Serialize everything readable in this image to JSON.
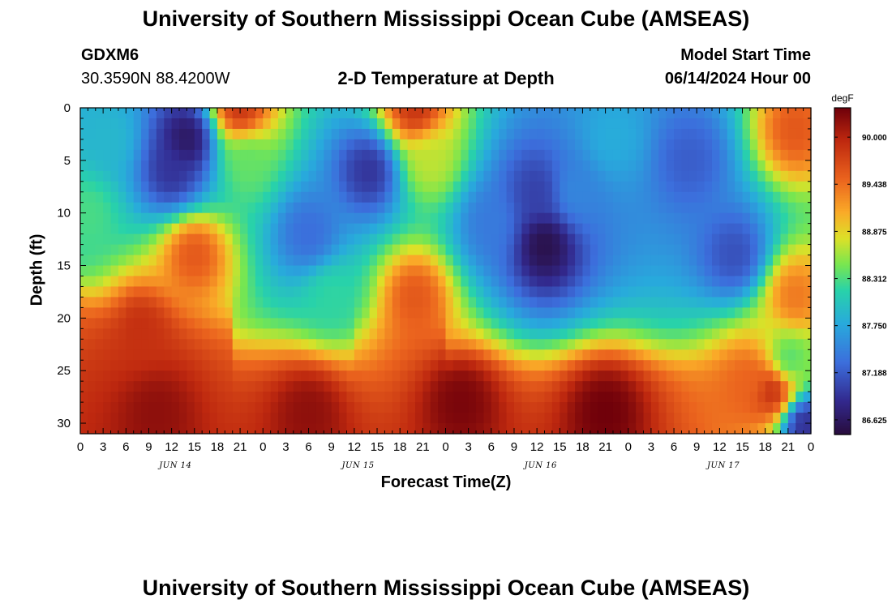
{
  "header": {
    "title": "University of Southern Mississippi Ocean Cube (AMSEAS)",
    "station_id": "GDXM6",
    "coordinates": "30.3590N  88.4200W",
    "subtitle": "2-D Temperature at Depth",
    "model_start_label": "Model Start Time",
    "model_start_value": "06/14/2024 Hour 00"
  },
  "footer": {
    "title": "University of Southern Mississippi Ocean Cube (AMSEAS)"
  },
  "chart_data": {
    "type": "heatmap",
    "title": "2-D Temperature at Depth",
    "xlabel": "Forecast Time(Z)",
    "ylabel": "Depth (ft)",
    "x_hours_range": [
      0,
      96
    ],
    "ylim": [
      0,
      31
    ],
    "x_tick_labels": [
      "0",
      "3",
      "6",
      "9",
      "12",
      "15",
      "18",
      "21",
      "0",
      "3",
      "6",
      "9",
      "12",
      "15",
      "18",
      "21",
      "0",
      "3",
      "6",
      "9",
      "12",
      "15",
      "18",
      "21",
      "0",
      "3",
      "6",
      "9",
      "12",
      "15",
      "18",
      "21",
      "0"
    ],
    "y_ticks": [
      0,
      5,
      10,
      15,
      20,
      25,
      30
    ],
    "date_labels": [
      {
        "label": "JUN 14",
        "hour": 12.5
      },
      {
        "label": "JUN 15",
        "hour": 36.5
      },
      {
        "label": "JUN 16",
        "hour": 60.5
      },
      {
        "label": "JUN 17",
        "hour": 84.5
      }
    ],
    "colorbar": {
      "unit": "degF",
      "min": 86.45,
      "max": 90.35,
      "tick_values": [
        90.0,
        89.438,
        88.875,
        88.312,
        87.75,
        87.188,
        86.625
      ],
      "tick_labels": [
        "90.000",
        "89.438",
        "88.875",
        "88.312",
        "87.750",
        "87.188",
        "86.625"
      ]
    },
    "features": [
      {
        "hour": 1,
        "depth": 10,
        "value": 88.3
      },
      {
        "hour": 4,
        "depth": 3,
        "value": 87.9
      },
      {
        "hour": 14,
        "depth": 3,
        "value": 86.6
      },
      {
        "hour": 12,
        "depth": 6,
        "value": 86.9
      },
      {
        "hour": 21,
        "depth": 0,
        "value": 89.9
      },
      {
        "hour": 22,
        "depth": 5,
        "value": 88.4
      },
      {
        "hour": 15,
        "depth": 14,
        "value": 89.6
      },
      {
        "hour": 8,
        "depth": 21,
        "value": 89.9
      },
      {
        "hour": 30,
        "depth": 12,
        "value": 87.3
      },
      {
        "hour": 38,
        "depth": 6,
        "value": 86.9
      },
      {
        "hour": 33,
        "depth": 18,
        "value": 88.2
      },
      {
        "hour": 44,
        "depth": 0,
        "value": 89.9
      },
      {
        "hour": 46,
        "depth": 5,
        "value": 88.7
      },
      {
        "hour": 44,
        "depth": 18,
        "value": 89.6
      },
      {
        "hour": 54,
        "depth": 11,
        "value": 87.4
      },
      {
        "hour": 61,
        "depth": 13,
        "value": 86.5
      },
      {
        "hour": 60,
        "depth": 8,
        "value": 87.0
      },
      {
        "hour": 65,
        "depth": 8,
        "value": 87.5
      },
      {
        "hour": 70,
        "depth": 3,
        "value": 87.8
      },
      {
        "hour": 80,
        "depth": 5,
        "value": 87.2
      },
      {
        "hour": 86,
        "depth": 14,
        "value": 87.1
      },
      {
        "hour": 94,
        "depth": 2,
        "value": 89.6
      },
      {
        "hour": 94,
        "depth": 18,
        "value": 89.4
      },
      {
        "hour": 88,
        "depth": 26,
        "value": 89.5
      },
      {
        "hour": 91,
        "depth": 27,
        "value": 90.0
      },
      {
        "hour": 93,
        "depth": 24,
        "value": 88.3
      },
      {
        "hour": 95,
        "depth": 30,
        "value": 86.8
      },
      {
        "hour": 50,
        "depth": 28,
        "value": 90.3
      },
      {
        "hour": 69,
        "depth": 29,
        "value": 90.35
      },
      {
        "hour": 30,
        "depth": 29,
        "value": 90.2
      },
      {
        "hour": 10,
        "depth": 29,
        "value": 90.2
      }
    ]
  }
}
